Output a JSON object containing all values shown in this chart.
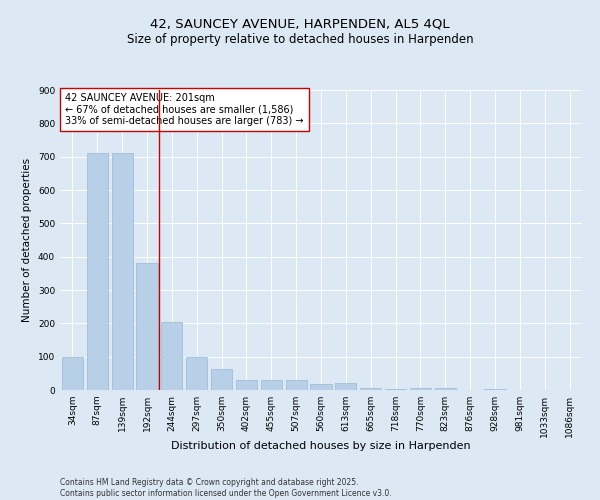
{
  "title1": "42, SAUNCEY AVENUE, HARPENDEN, AL5 4QL",
  "title2": "Size of property relative to detached houses in Harpenden",
  "xlabel": "Distribution of detached houses by size in Harpenden",
  "ylabel": "Number of detached properties",
  "categories": [
    "34sqm",
    "87sqm",
    "139sqm",
    "192sqm",
    "244sqm",
    "297sqm",
    "350sqm",
    "402sqm",
    "455sqm",
    "507sqm",
    "560sqm",
    "613sqm",
    "665sqm",
    "718sqm",
    "770sqm",
    "823sqm",
    "876sqm",
    "928sqm",
    "981sqm",
    "1033sqm",
    "1086sqm"
  ],
  "values": [
    100,
    710,
    710,
    380,
    205,
    98,
    64,
    30,
    30,
    30,
    18,
    20,
    5,
    4,
    5,
    6,
    0,
    4,
    0,
    0,
    0
  ],
  "bar_color": "#b8cfe8",
  "bar_edge_color": "#9ab8d8",
  "background_color": "#dce9f5",
  "plot_bg_color": "#dce9f5",
  "vline_x_index": 3.5,
  "vline_color": "#cc0000",
  "annotation_text": "42 SAUNCEY AVENUE: 201sqm\n← 67% of detached houses are smaller (1,586)\n33% of semi-detached houses are larger (783) →",
  "annotation_box_color": "#ffffff",
  "annotation_box_edge": "#cc0000",
  "footer": "Contains HM Land Registry data © Crown copyright and database right 2025.\nContains public sector information licensed under the Open Government Licence v3.0.",
  "ylim": [
    0,
    900
  ],
  "yticks": [
    0,
    100,
    200,
    300,
    400,
    500,
    600,
    700,
    800,
    900
  ],
  "title1_fontsize": 9.5,
  "title2_fontsize": 8.5,
  "xlabel_fontsize": 8,
  "ylabel_fontsize": 7.5,
  "tick_fontsize": 6.5,
  "annotation_fontsize": 7,
  "footer_fontsize": 5.5
}
